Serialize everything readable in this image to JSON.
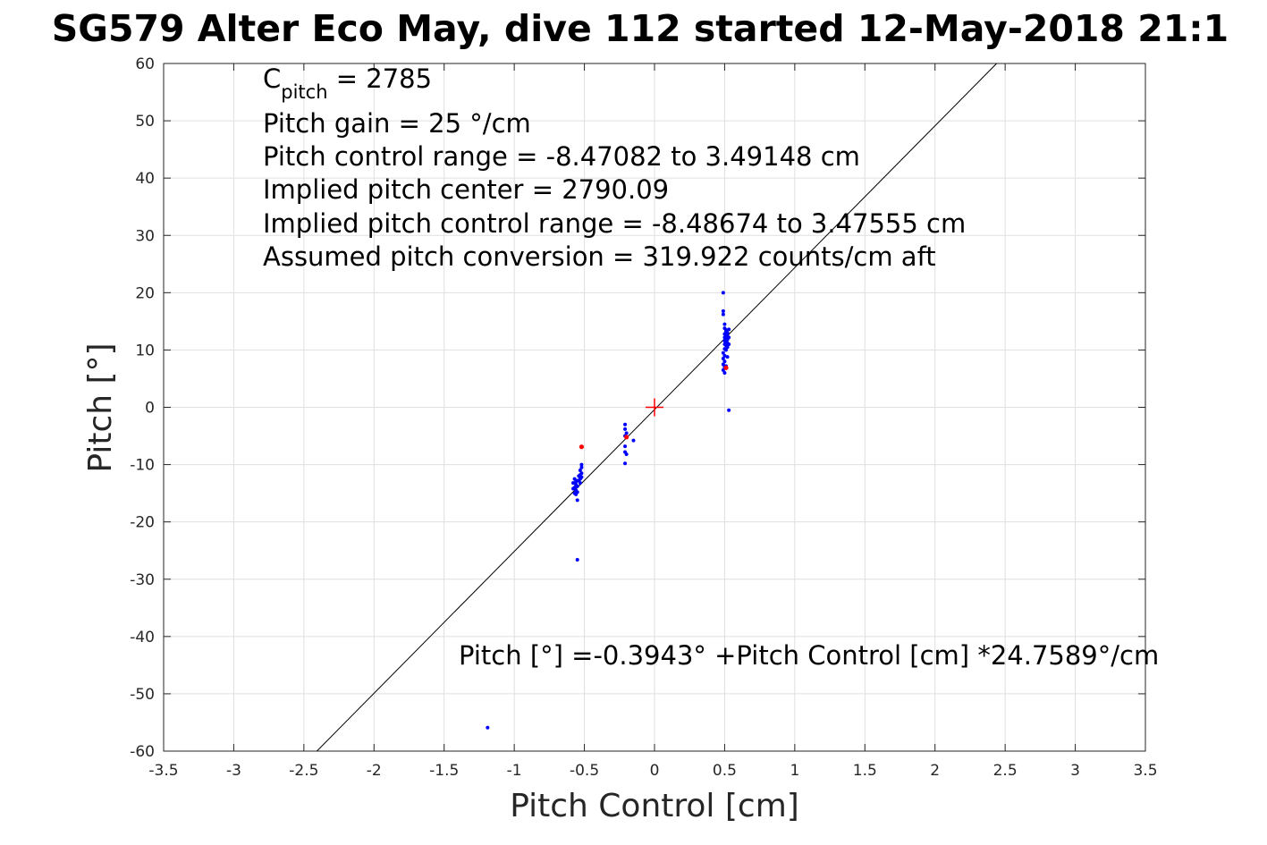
{
  "chart_data": {
    "type": "scatter",
    "title": "SG579 Alter Eco May, dive 112 started 12-May-2018 21:1",
    "xlabel": "Pitch Control [cm]",
    "ylabel": "Pitch [°]",
    "xlim": [
      -3.5,
      3.5
    ],
    "ylim": [
      -60,
      60
    ],
    "xticks": [
      "-3.5",
      "-3",
      "-2.5",
      "-2",
      "-1.5",
      "-1",
      "-0.5",
      "0",
      "0.5",
      "1",
      "1.5",
      "2",
      "2.5",
      "3",
      "3.5"
    ],
    "yticks": [
      "60",
      "50",
      "40",
      "30",
      "20",
      "10",
      "0",
      "-10",
      "-20",
      "-30",
      "-40",
      "-50",
      "-60"
    ],
    "grid": true,
    "annotations": {
      "c_pitch_base": "C",
      "c_pitch_sub": "pitch",
      "c_pitch_value": " = 2785",
      "pitch_gain": "Pitch gain = 25 °/cm",
      "control_range": "Pitch control range = -8.47082 to 3.49148 cm",
      "implied_center": "Implied pitch center = 2790.09",
      "implied_range": "Implied pitch control range = -8.48674 to 3.47555 cm",
      "conversion": "Assumed pitch conversion = 319.922 counts/cm aft"
    },
    "fit_equation": "Pitch [°] =-0.3943° +Pitch Control [cm] *24.7589°/cm",
    "fit_line": {
      "intercept": -0.3943,
      "slope": 24.7589,
      "color": "#000000"
    },
    "center_marker": {
      "x": 0,
      "y": 0,
      "color": "#ff0000",
      "shape": "plus"
    },
    "series": [
      {
        "color": "#0000ff",
        "points": [
          [
            0.49,
            20.0
          ],
          [
            0.49,
            16.8
          ],
          [
            0.49,
            16.2
          ],
          [
            0.5,
            14.5
          ],
          [
            0.5,
            13.8
          ],
          [
            0.51,
            13.5
          ],
          [
            0.51,
            13.2
          ],
          [
            0.52,
            13.0
          ],
          [
            0.5,
            12.8
          ],
          [
            0.51,
            12.6
          ],
          [
            0.52,
            12.4
          ],
          [
            0.5,
            12.2
          ],
          [
            0.51,
            12.0
          ],
          [
            0.52,
            11.8
          ],
          [
            0.5,
            11.6
          ],
          [
            0.51,
            11.4
          ],
          [
            0.52,
            11.2
          ],
          [
            0.5,
            11.0
          ],
          [
            0.51,
            10.8
          ],
          [
            0.52,
            10.5
          ],
          [
            0.5,
            10.2
          ],
          [
            0.51,
            10.0
          ],
          [
            0.49,
            9.5
          ],
          [
            0.5,
            9.0
          ],
          [
            0.52,
            8.8
          ],
          [
            0.49,
            8.5
          ],
          [
            0.5,
            8.0
          ],
          [
            0.49,
            7.5
          ],
          [
            0.5,
            7.0
          ],
          [
            0.49,
            6.5
          ],
          [
            0.5,
            6.0
          ],
          [
            0.51,
            7.2
          ],
          [
            0.53,
            13.6
          ],
          [
            0.53,
            12.2
          ],
          [
            0.53,
            11.0
          ],
          [
            0.53,
            -0.5
          ],
          [
            -0.21,
            -3.0
          ],
          [
            -0.21,
            -3.8
          ],
          [
            -0.2,
            -4.5
          ],
          [
            -0.21,
            -5.0
          ],
          [
            -0.2,
            -5.2
          ],
          [
            -0.21,
            -6.8
          ],
          [
            -0.21,
            -7.8
          ],
          [
            -0.2,
            -8.2
          ],
          [
            -0.21,
            -9.8
          ],
          [
            -0.15,
            -5.8
          ],
          [
            -0.52,
            -10.0
          ],
          [
            -0.52,
            -10.5
          ],
          [
            -0.53,
            -11.0
          ],
          [
            -0.52,
            -11.5
          ],
          [
            -0.53,
            -11.8
          ],
          [
            -0.54,
            -12.0
          ],
          [
            -0.52,
            -12.2
          ],
          [
            -0.53,
            -12.5
          ],
          [
            -0.55,
            -12.8
          ],
          [
            -0.56,
            -13.0
          ],
          [
            -0.57,
            -12.5
          ],
          [
            -0.58,
            -13.2
          ],
          [
            -0.56,
            -13.5
          ],
          [
            -0.55,
            -13.8
          ],
          [
            -0.57,
            -14.0
          ],
          [
            -0.58,
            -14.2
          ],
          [
            -0.56,
            -14.5
          ],
          [
            -0.55,
            -14.8
          ],
          [
            -0.57,
            -15.0
          ],
          [
            -0.56,
            -15.2
          ],
          [
            -0.54,
            -12.8
          ],
          [
            -0.53,
            -13.2
          ],
          [
            -0.55,
            -16.2
          ],
          [
            -0.55,
            -26.6
          ],
          [
            -1.19,
            -55.9
          ]
        ]
      },
      {
        "color": "#ff0000",
        "points": [
          [
            0.51,
            6.9
          ],
          [
            -0.52,
            -6.9
          ],
          [
            -0.2,
            -5.2
          ]
        ]
      }
    ]
  }
}
